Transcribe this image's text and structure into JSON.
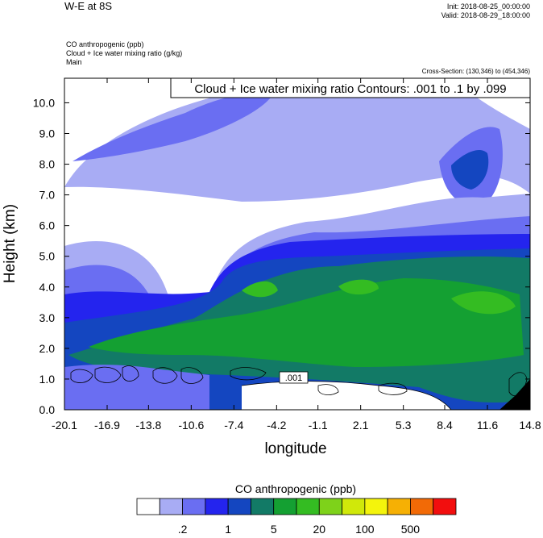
{
  "header": {
    "title": "W-E at 8S",
    "init": "Init: 2018-08-25_00:00:00",
    "valid": "Valid: 2018-08-29_18:00:00",
    "fields": [
      "CO anthropogenic   (ppb)",
      "Cloud + Ice water mixing ratio   (g/kg)",
      "Main"
    ],
    "cross_section": "Cross-Section: (130,346) to (454,346)"
  },
  "chart_data": {
    "type": "contour-cross-section",
    "contour_label": "Cloud + Ice water mixing ratio Contours: .001 to .1 by .099",
    "inline_contour_label": ".001",
    "xlabel": "longitude",
    "ylabel": "Height (km)",
    "xticks": [
      "-20.1",
      "-16.9",
      "-13.8",
      "-10.6",
      "-7.4",
      "-4.2",
      "-1.1",
      "2.1",
      "5.3",
      "8.4",
      "11.6",
      "14.8"
    ],
    "yticks": [
      "0.0",
      "1.0",
      "2.0",
      "3.0",
      "4.0",
      "5.0",
      "6.0",
      "7.0",
      "8.0",
      "9.0",
      "10.0"
    ],
    "xlim": [
      -20.1,
      14.8
    ],
    "ylim": [
      0.0,
      10.8
    ],
    "colorbar": {
      "title": "CO anthropogenic  (ppb)",
      "colors": [
        "#ffffff",
        "#a8acf4",
        "#6a6ef2",
        "#2424ee",
        "#1446c0",
        "#127a66",
        "#14a032",
        "#34bc22",
        "#7ed21a",
        "#d0e80a",
        "#f4f40c",
        "#f6b004",
        "#f26a06",
        "#f20e0e"
      ],
      "labels": [
        ".2",
        "1",
        "5",
        "20",
        "100",
        "500"
      ]
    }
  }
}
